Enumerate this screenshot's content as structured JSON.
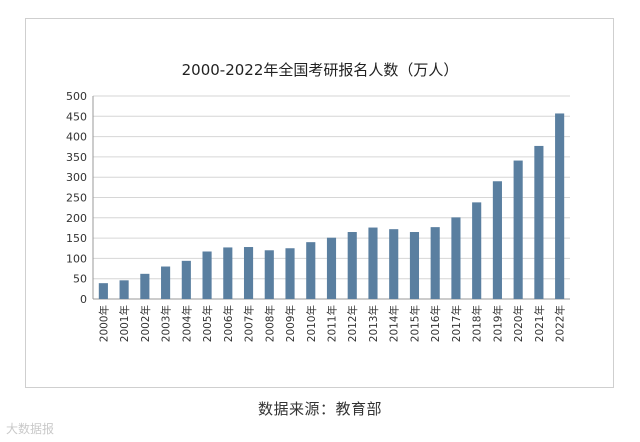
{
  "chart_data": {
    "type": "bar",
    "title": "2000-2022年全国考研报名人数（万人）",
    "xlabel": "",
    "ylabel": "",
    "categories": [
      "2000年",
      "2001年",
      "2002年",
      "2003年",
      "2004年",
      "2005年",
      "2006年",
      "2007年",
      "2008年",
      "2009年",
      "2010年",
      "2011年",
      "2012年",
      "2013年",
      "2014年",
      "2015年",
      "2016年",
      "2017年",
      "2018年",
      "2019年",
      "2020年",
      "2021年",
      "2022年"
    ],
    "values": [
      39,
      46,
      62,
      80,
      94,
      117,
      127,
      128,
      120,
      125,
      140,
      151,
      165,
      176,
      172,
      165,
      177,
      201,
      238,
      290,
      341,
      377,
      457
    ],
    "ylim": [
      0,
      500
    ],
    "yticks": [
      0,
      50,
      100,
      150,
      200,
      250,
      300,
      350,
      400,
      450,
      500
    ],
    "grid": true,
    "bar_color": "#5a7fa0"
  },
  "footer": {
    "source": "数据来源：教育部",
    "watermark": "大数据报"
  }
}
